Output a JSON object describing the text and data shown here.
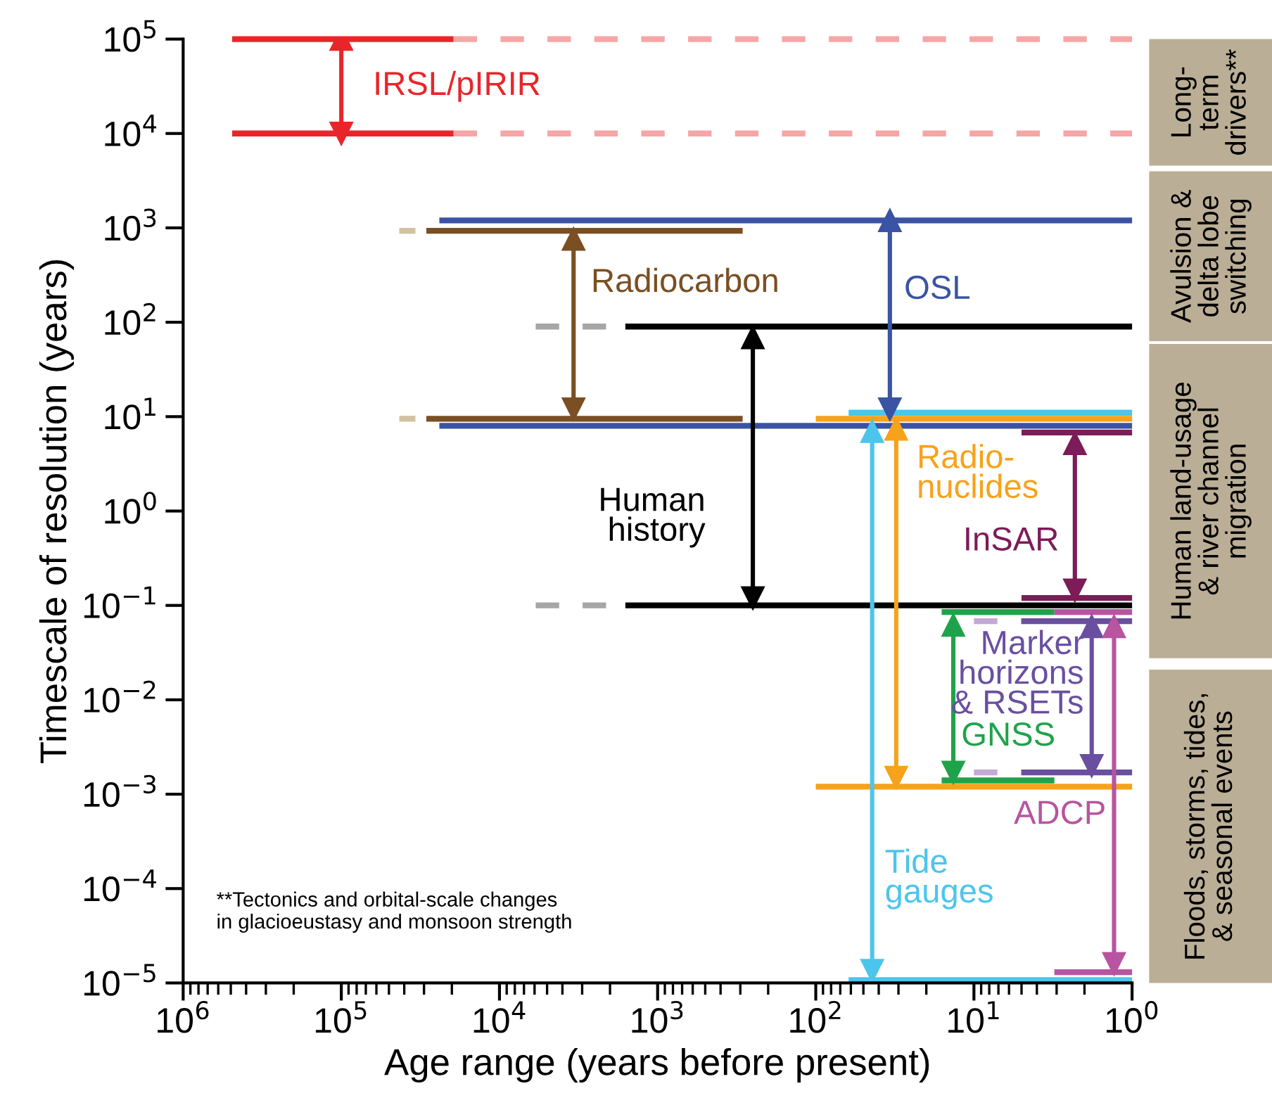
{
  "chart_data": {
    "type": "line",
    "xlabel": "Age range (years before present)",
    "ylabel": "Timescale of resolution (years)",
    "log": "xy",
    "grid": false,
    "xlim": [
      1000000,
      1
    ],
    "ylim": [
      1e-05,
      100000
    ],
    "xticks": [
      {
        "value": 1000000,
        "label": "10$^{6}$"
      },
      {
        "value": 100000,
        "label": "10$^{5}$"
      },
      {
        "value": 10000,
        "label": "10$^{4}$"
      },
      {
        "value": 1000,
        "label": "10$^{3}$"
      },
      {
        "value": 100,
        "label": "10$^{2}$"
      },
      {
        "value": 10,
        "label": "10$^{1}$"
      },
      {
        "value": 1,
        "label": "10$^{0}$"
      }
    ],
    "yticks": [
      {
        "value": 1e-05,
        "label": "10$^{−5}$"
      },
      {
        "value": 0.0001,
        "label": "10$^{−4}$"
      },
      {
        "value": 0.001,
        "label": "10$^{−3}$"
      },
      {
        "value": 0.01,
        "label": "10$^{−2}$"
      },
      {
        "value": 0.1,
        "label": "10$^{−1}$"
      },
      {
        "value": 1,
        "label": "10$^{0}$"
      },
      {
        "value": 10,
        "label": "10$^{1}$"
      },
      {
        "value": 100,
        "label": "10$^{2}$"
      },
      {
        "value": 1000,
        "label": "10$^{3}$"
      },
      {
        "value": 10000,
        "label": "10$^{4}$"
      },
      {
        "value": 100000,
        "label": "10$^{5}$"
      }
    ],
    "series": [
      {
        "color": "#e8262a",
        "x": [
          490000,
          19500
        ],
        "values": [
          100000,
          100000
        ]
      },
      {
        "color": "#e8262a",
        "x": [
          490000,
          19500
        ],
        "values": [
          10000,
          10000
        ]
      },
      {
        "color": "#f6a6a6",
        "line_style": "dashed",
        "x": [
          19500,
          1
        ],
        "values": [
          100000,
          100000
        ]
      },
      {
        "color": "#f6a6a6",
        "line_style": "dashed",
        "x": [
          19500,
          1
        ],
        "values": [
          10000,
          10000
        ]
      },
      {
        "color": "#3a53a4",
        "x": [
          24000,
          1
        ],
        "values": [
          1200,
          1200
        ]
      },
      {
        "color": "#3a53a4",
        "x": [
          24000,
          1
        ],
        "values": [
          8,
          8
        ]
      },
      {
        "color": "#7a4f23",
        "x": [
          29000,
          290
        ],
        "values": [
          930,
          930
        ]
      },
      {
        "color": "#7a4f23",
        "x": [
          29000,
          290
        ],
        "values": [
          9.5,
          9.5
        ]
      },
      {
        "color": "#d2c2a2",
        "x": [
          43000,
          34000
        ],
        "values": [
          930,
          930
        ]
      },
      {
        "color": "#d2c2a2",
        "x": [
          43000,
          34000
        ],
        "values": [
          9.5,
          9.5
        ]
      },
      {
        "color": "#000000",
        "x": [
          1600,
          1
        ],
        "values": [
          90,
          90
        ]
      },
      {
        "color": "#000000",
        "x": [
          1600,
          1
        ],
        "values": [
          0.1,
          0.1
        ]
      },
      {
        "color": "#a6a6a6",
        "line_style": "dashed",
        "x": [
          5900,
          1900
        ],
        "values": [
          90,
          90
        ]
      },
      {
        "color": "#a6a6a6",
        "line_style": "dashed",
        "x": [
          5900,
          1900
        ],
        "values": [
          0.1,
          0.1
        ]
      },
      {
        "color": "#f7a21b",
        "x": [
          100,
          1
        ],
        "values": [
          9.5,
          9.5
        ]
      },
      {
        "color": "#f7a21b",
        "x": [
          100,
          1
        ],
        "values": [
          0.0012,
          0.0012
        ]
      },
      {
        "color": "#4cc5ec",
        "x": [
          62,
          1
        ],
        "values": [
          11,
          11
        ]
      },
      {
        "color": "#4cc5ec",
        "x": [
          62,
          1
        ],
        "values": [
          1.07e-05,
          1.07e-05
        ]
      },
      {
        "color": "#7c1c58",
        "x": [
          5,
          1
        ],
        "values": [
          6.8,
          6.8
        ]
      },
      {
        "color": "#7c1c58",
        "x": [
          5,
          1
        ],
        "values": [
          0.12,
          0.12
        ]
      },
      {
        "color": "#1fa34a",
        "x": [
          16,
          3.1
        ],
        "values": [
          0.085,
          0.085
        ]
      },
      {
        "color": "#1fa34a",
        "x": [
          16,
          3.1
        ],
        "values": [
          0.0014,
          0.0014
        ]
      },
      {
        "color": "#c3a9d3",
        "line_style": "dashed",
        "x": [
          10,
          5
        ],
        "values": [
          0.068,
          0.068
        ]
      },
      {
        "color": "#c3a9d3",
        "line_style": "dashed",
        "x": [
          10,
          5
        ],
        "values": [
          0.0017,
          0.0017
        ]
      },
      {
        "color": "#6a4fa0",
        "x": [
          5,
          1
        ],
        "values": [
          0.068,
          0.068
        ]
      },
      {
        "color": "#6a4fa0",
        "x": [
          5,
          1
        ],
        "values": [
          0.0017,
          0.0017
        ]
      },
      {
        "color": "#b854a0",
        "x": [
          3.1,
          1
        ],
        "values": [
          0.085,
          0.085
        ]
      },
      {
        "color": "#b854a0",
        "x": [
          3.1,
          1
        ],
        "values": [
          1.3e-05,
          1.3e-05
        ]
      },
      {
        "name": "IRSL/pIRIR",
        "marker": "triangle",
        "color": "#e8262a",
        "x": [
          100000,
          100000
        ],
        "values": [
          100000,
          10000
        ]
      },
      {
        "name": "Radiocarbon",
        "marker": "triangle",
        "color": "#7a4f23",
        "x": [
          3400,
          3400
        ],
        "values": [
          760,
          12
        ]
      },
      {
        "name": "OSL",
        "marker": "triangle",
        "color": "#3a53a4",
        "x": [
          34,
          34
        ],
        "values": [
          1200,
          12
        ]
      },
      {
        "name": "Human\nhistory",
        "marker": "triangle",
        "color": "#000000",
        "x": [
          250,
          250
        ],
        "values": [
          69,
          0.12
        ]
      },
      {
        "name": "Radio-\nnuclides",
        "marker": "triangle",
        "color": "#f7a21b",
        "x": [
          31,
          31
        ],
        "values": [
          7.4,
          0.0015
        ]
      },
      {
        "name": "Tide\ngauges",
        "marker": "triangle",
        "color": "#4cc5ec",
        "x": [
          44,
          44
        ],
        "values": [
          7,
          1.35e-05
        ]
      },
      {
        "name": "InSAR",
        "marker": "triangle",
        "color": "#7c1c58",
        "x": [
          2.3,
          2.3
        ],
        "values": [
          5.2,
          0.145
        ]
      },
      {
        "name": "GNSS",
        "marker": "triangle",
        "color": "#1fa34a",
        "x": [
          13.5,
          13.5
        ],
        "values": [
          0.062,
          0.0017
        ]
      },
      {
        "name": "Marker\nhorizons\n& RSETs",
        "marker": "triangle",
        "color": "#6a4fa0",
        "x": [
          1.8,
          1.8
        ],
        "values": [
          0.06,
          0.002
        ]
      },
      {
        "name": "ADCP",
        "marker": "triangle",
        "color": "#b854a0",
        "x": [
          1.3,
          1.3
        ],
        "values": [
          0.06,
          1.6e-05
        ]
      }
    ],
    "annotations": [
      "Long-\nterm\ndrivers**",
      "Avulsion &\ndelta lobe\nswitching",
      "Human land-usage\n& river channel\nmigration",
      "Floods, storms, tides,\n& seasonal events",
      "**Tectonics and orbital-scale changes\nin glacioeustasy and monsoon strength"
    ]
  }
}
